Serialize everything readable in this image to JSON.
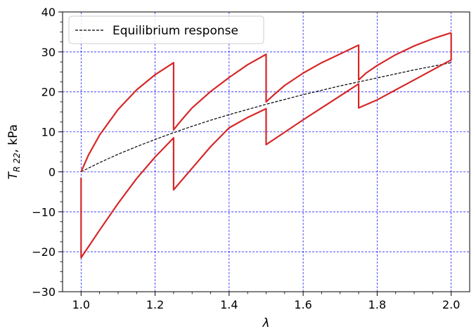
{
  "chart_data": {
    "type": "line",
    "xlabel": "λ",
    "ylabel_main": "T",
    "ylabel_sub": "R 22",
    "ylabel_unit": ",  kPa",
    "xlim": [
      0.95,
      2.05
    ],
    "ylim": [
      -30,
      40
    ],
    "xticks": [
      1.0,
      1.2,
      1.4,
      1.6,
      1.8,
      2.0
    ],
    "xtick_labels": [
      "1.0",
      "1.2",
      "1.4",
      "1.6",
      "1.8",
      "2.0"
    ],
    "yticks": [
      -30,
      -20,
      -10,
      0,
      10,
      20,
      30,
      40
    ],
    "ytick_labels": [
      "−30",
      "−20",
      "−10",
      "0",
      "10",
      "20",
      "30",
      "40"
    ],
    "grid": true,
    "grid_color": "#0000ff",
    "legend": {
      "placement": "top-left",
      "entries": [
        "Equilibrium response"
      ]
    },
    "series": [
      {
        "name": "Equilibrium response",
        "style": "dashed",
        "color": "#000000",
        "x": [
          1.0,
          1.05,
          1.1,
          1.15,
          1.2,
          1.25,
          1.3,
          1.35,
          1.4,
          1.45,
          1.5,
          1.55,
          1.6,
          1.65,
          1.7,
          1.75,
          1.8,
          1.85,
          1.9,
          1.95,
          2.0
        ],
        "y": [
          0,
          2.3,
          4.4,
          6.3,
          8.1,
          9.8,
          11.4,
          12.9,
          14.3,
          15.6,
          16.9,
          18.1,
          19.3,
          20.4,
          21.5,
          22.5,
          23.5,
          24.5,
          25.5,
          26.4,
          27.3
        ]
      },
      {
        "style": "solid",
        "color": "#d62728",
        "x": [
          1.0,
          1.0,
          1.05,
          1.1,
          1.15,
          1.2,
          1.25,
          1.25,
          1.3,
          1.35,
          1.4,
          1.45,
          1.5,
          1.5,
          1.55,
          1.6,
          1.65,
          1.7,
          1.75,
          1.75,
          1.8,
          1.85,
          1.9,
          1.95,
          2.0,
          2.0,
          2.0,
          2.0
        ],
        "y": [
          -1.5,
          -21.5,
          -14.6,
          -7.9,
          -1.7,
          3.7,
          8.5,
          -4.5,
          0.9,
          6.3,
          11.0,
          13.6,
          15.8,
          6.8,
          9.9,
          13.0,
          16.0,
          19.0,
          22.0,
          16.0,
          18.0,
          20.5,
          23.0,
          25.5,
          28.0,
          28.0,
          33.0,
          34.8
        ]
      },
      {
        "style": "solid",
        "color": "#d62728",
        "x": [
          1.0,
          1.02,
          1.05,
          1.1,
          1.15,
          1.2,
          1.25,
          1.25,
          1.27,
          1.3,
          1.35,
          1.4,
          1.45,
          1.5,
          1.5,
          1.52,
          1.55,
          1.6,
          1.65,
          1.7,
          1.75,
          1.75,
          1.77,
          1.8,
          1.85,
          1.9,
          1.95,
          2.0
        ],
        "y": [
          0,
          4.2,
          9.2,
          15.6,
          20.5,
          24.3,
          27.3,
          10.5,
          12.8,
          16.0,
          20.1,
          23.6,
          26.8,
          29.4,
          17.5,
          19.2,
          21.6,
          24.7,
          27.3,
          29.5,
          31.7,
          23.0,
          24.7,
          26.6,
          29.3,
          31.5,
          33.3,
          34.8
        ]
      }
    ]
  }
}
